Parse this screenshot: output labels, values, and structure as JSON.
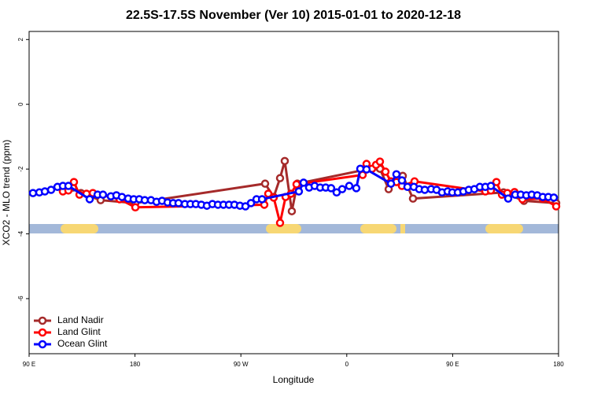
{
  "chart_data": {
    "type": "line",
    "title": "22.5S-17.5S November (Ver 10)   2015-01-01 to 2020-12-18",
    "x_label": "Longitude",
    "y_label": "XCO2 - MLO trend (ppm)",
    "xlim": [
      90,
      540
    ],
    "xticks": [
      {
        "value": 90,
        "label": "90 E"
      },
      180,
      {
        "value": 270,
        "label": "90 W"
      },
      {
        "value": 360,
        "label": "0"
      },
      {
        "value": 450,
        "label": "90 E"
      },
      {
        "value": 540,
        "label": "180"
      }
    ],
    "ylim": [
      -7.7,
      2.25
    ],
    "yticks": [
      2,
      0,
      -2,
      -4,
      -6
    ],
    "legend": "bottom-left",
    "series": [
      {
        "name": "Land Nadir",
        "color": "#a52a2a",
        "x": [
          127.4,
          134.1,
          150.8,
          180.3,
          290.6,
          297.9,
          303.3,
          307.3,
          313.3,
          318,
          376.8,
          388.2,
          395.6,
          407.6,
          416.3,
          493.2,
          510.6,
          538
        ],
        "values": [
          -2.57,
          -2.74,
          -2.96,
          -3.05,
          -2.45,
          -2.86,
          -2.28,
          -1.75,
          -3.3,
          -2.45,
          -2.01,
          -1.99,
          -2.62,
          -2.21,
          -2.91,
          -2.72,
          -2.98,
          -3.05
        ]
      },
      {
        "name": "Land Glint",
        "color": "#ff0000",
        "x": [
          118.7,
          123.4,
          128.1,
          132.8,
          138.8,
          144.2,
          166.9,
          180.3,
          289.9,
          293.3,
          297.9,
          303.3,
          308,
          312.6,
          317.3,
          373.5,
          376.8,
          381.5,
          384.9,
          388.2,
          392.9,
          397.6,
          402.2,
          406.9,
          417.6,
          477.8,
          482.5,
          487.2,
          491.9,
          496.5,
          502.6,
          509.3,
          526.6,
          538
        ],
        "values": [
          -2.69,
          -2.66,
          -2.4,
          -2.79,
          -2.76,
          -2.74,
          -2.93,
          -3.18,
          -3.1,
          -2.76,
          -2.88,
          -3.66,
          -2.86,
          -2.76,
          -2.47,
          -2.18,
          -1.84,
          -1.99,
          -1.87,
          -1.77,
          -2.08,
          -2.38,
          -2.4,
          -2.52,
          -2.38,
          -2.69,
          -2.66,
          -2.4,
          -2.79,
          -2.74,
          -2.71,
          -2.93,
          -2.91,
          -3.15
        ]
      },
      {
        "name": "Ocean Glint",
        "color": "#0000ff",
        "x": [
          93.3,
          98.7,
          103.4,
          108.7,
          114.1,
          118.7,
          123.4,
          141.5,
          148.2,
          152.8,
          159.5,
          164.2,
          168.9,
          174.2,
          178.9,
          183.6,
          188.3,
          193.6,
          198.3,
          203,
          207.7,
          212.4,
          217,
          222.4,
          227.1,
          231.7,
          236.4,
          241.1,
          245.8,
          250.5,
          255.2,
          259.9,
          264.5,
          269.2,
          273.9,
          278.6,
          283.3,
          288,
          319.3,
          323.3,
          328,
          332.7,
          337.4,
          342.1,
          346.7,
          351.4,
          356.1,
          362.1,
          368.1,
          371.5,
          376.8,
          397.6,
          402.2,
          406.9,
          411.6,
          417,
          421.6,
          426.3,
          431.7,
          436.3,
          441,
          445.7,
          449.7,
          454.4,
          459.1,
          463.7,
          468.4,
          473.1,
          477.8,
          482.5,
          497.2,
          503.2,
          507.9,
          512.6,
          517.2,
          521.9,
          526.6,
          531.3,
          536
        ],
        "values": [
          -2.74,
          -2.72,
          -2.69,
          -2.64,
          -2.55,
          -2.52,
          -2.52,
          -2.93,
          -2.79,
          -2.79,
          -2.84,
          -2.81,
          -2.86,
          -2.91,
          -2.93,
          -2.93,
          -2.96,
          -2.96,
          -3.01,
          -2.98,
          -3.03,
          -3.05,
          -3.05,
          -3.08,
          -3.08,
          -3.08,
          -3.1,
          -3.13,
          -3.08,
          -3.1,
          -3.1,
          -3.1,
          -3.1,
          -3.13,
          -3.15,
          -3.05,
          -2.93,
          -2.93,
          -2.69,
          -2.42,
          -2.57,
          -2.52,
          -2.57,
          -2.57,
          -2.59,
          -2.72,
          -2.62,
          -2.52,
          -2.59,
          -1.99,
          -2.01,
          -2.45,
          -2.16,
          -2.35,
          -2.55,
          -2.55,
          -2.62,
          -2.64,
          -2.62,
          -2.64,
          -2.72,
          -2.69,
          -2.72,
          -2.72,
          -2.69,
          -2.64,
          -2.62,
          -2.55,
          -2.55,
          -2.52,
          -2.91,
          -2.79,
          -2.79,
          -2.81,
          -2.79,
          -2.81,
          -2.86,
          -2.86,
          -2.88
        ]
      }
    ]
  }
}
